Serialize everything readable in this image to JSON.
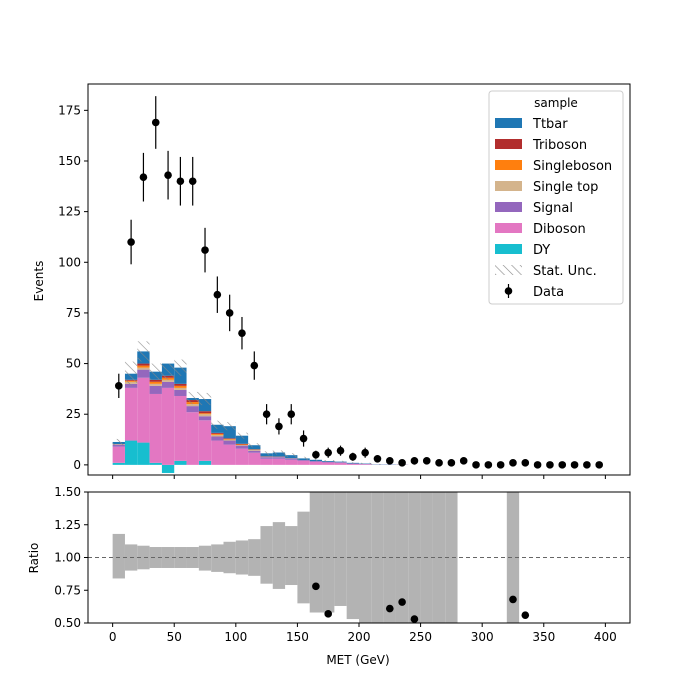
{
  "chart_data": {
    "type": "bar",
    "xlabel": "MET (GeV)",
    "bin_edges": [
      0,
      10,
      20,
      30,
      40,
      50,
      60,
      70,
      80,
      90,
      100,
      110,
      120,
      130,
      140,
      150,
      160,
      170,
      180,
      190,
      200,
      210,
      220,
      230,
      240,
      250,
      260,
      270,
      280,
      290,
      300,
      310,
      320,
      330,
      340,
      350,
      360,
      370,
      380,
      390,
      400
    ],
    "x_ticks": [
      "0",
      "50",
      "100",
      "150",
      "200",
      "250",
      "300",
      "350",
      "400"
    ],
    "top_panel": {
      "ylabel": "Events",
      "ylim": [
        -5,
        188
      ],
      "y_ticks": [
        "0",
        "25",
        "50",
        "75",
        "100",
        "125",
        "150",
        "175"
      ],
      "legend_title": "sample",
      "legend_position": "top-right",
      "stack": [
        {
          "name": "DY",
          "color": "#17becf",
          "values": [
            1,
            12,
            11,
            1,
            -4,
            2,
            0,
            2,
            0,
            0,
            0,
            0,
            0,
            0,
            0,
            0,
            0,
            0,
            0,
            0,
            0,
            0,
            0,
            0,
            0,
            0,
            0,
            0,
            0,
            0,
            0,
            0,
            0,
            0,
            0,
            0,
            0,
            0,
            0,
            0
          ]
        },
        {
          "name": "Diboson",
          "color": "#e377c2",
          "values": [
            8,
            26,
            32,
            34,
            38,
            32,
            26,
            20,
            12,
            10,
            8,
            6,
            3,
            3,
            2.5,
            2,
            1.5,
            1.2,
            1,
            0.5,
            0.3,
            0,
            0,
            0,
            0,
            0,
            0,
            0,
            0,
            0,
            0,
            0,
            0,
            0,
            0,
            0,
            0,
            0,
            0,
            0
          ]
        },
        {
          "name": "Signal",
          "color": "#9467bd",
          "values": [
            1,
            2,
            4,
            4,
            3,
            3,
            3,
            2,
            2,
            2,
            1.5,
            1,
            0.8,
            0.8,
            0.6,
            0.4,
            0.4,
            0.3,
            0.3,
            0.2,
            0.2,
            0.1,
            0.1,
            0.1,
            0,
            0,
            0,
            0,
            0,
            0,
            0,
            0,
            0,
            0,
            0,
            0,
            0,
            0,
            0,
            0
          ]
        },
        {
          "name": "Single top",
          "color": "#d4b48c",
          "values": [
            0.3,
            1,
            1,
            1,
            1,
            1,
            1,
            1,
            0.8,
            0.5,
            0.3,
            0.3,
            0.2,
            0.2,
            0.1,
            0,
            0,
            0,
            0,
            0,
            0,
            0,
            0,
            0,
            0,
            0,
            0,
            0,
            0,
            0,
            0,
            0,
            0,
            0,
            0,
            0,
            0,
            0,
            0,
            0
          ]
        },
        {
          "name": "Singleboson",
          "color": "#ff7f0e",
          "values": [
            0,
            0.5,
            1,
            1,
            1,
            1,
            1,
            0.5,
            0.5,
            0.3,
            0.3,
            0.2,
            0,
            0,
            0,
            0,
            0,
            0,
            0,
            0,
            0,
            0,
            0,
            0,
            0,
            0,
            0,
            0,
            0,
            0,
            0,
            0,
            0,
            0,
            0,
            0,
            0,
            0,
            0,
            0
          ]
        },
        {
          "name": "Triboson",
          "color": "#b22e2e",
          "values": [
            0,
            0.5,
            1,
            1,
            1,
            1,
            1,
            1,
            0.5,
            0.3,
            0.3,
            0.2,
            0.2,
            0.1,
            0.1,
            0,
            0,
            0,
            0,
            0,
            0,
            0,
            0,
            0,
            0,
            0,
            0,
            0,
            0,
            0,
            0,
            0,
            0,
            0,
            0,
            0,
            0,
            0,
            0,
            0
          ]
        },
        {
          "name": "Ttbar",
          "color": "#1f77b4",
          "values": [
            1,
            3,
            6,
            4,
            6,
            8,
            1,
            6,
            4,
            6,
            4,
            2,
            1.5,
            2,
            1.5,
            0.8,
            0.6,
            0.4,
            0.3,
            0.3,
            0.2,
            0.1,
            0.1,
            0,
            0,
            0,
            0,
            0,
            0,
            0,
            0,
            0,
            0,
            0,
            0,
            0,
            0,
            0,
            0,
            0
          ]
        }
      ],
      "stat_unc": [
        1.5,
        6,
        5,
        4,
        4,
        4,
        3,
        3,
        2,
        2,
        1.5,
        1,
        1,
        1,
        1,
        0.8,
        0.6,
        0.5,
        0.4,
        0.3,
        0.3,
        0.2,
        0.2,
        0.1,
        0.1,
        0,
        0,
        0,
        0,
        0,
        0,
        0,
        0,
        0,
        0,
        0,
        0,
        0,
        0,
        0
      ],
      "stat_unc_label": "Stat. Unc.",
      "data": {
        "name": "Data",
        "x": [
          5,
          15,
          25,
          35,
          45,
          55,
          65,
          75,
          85,
          95,
          105,
          115,
          125,
          135,
          145,
          155,
          165,
          175,
          185,
          195,
          205,
          215,
          225,
          235,
          245,
          255,
          265,
          275,
          285,
          295,
          305,
          315,
          325,
          335,
          345,
          355,
          365,
          375,
          385,
          395
        ],
        "y": [
          39,
          110,
          142,
          169,
          143,
          140,
          140,
          106,
          84,
          75,
          65,
          49,
          25,
          19,
          25,
          13,
          5,
          6,
          7,
          4,
          6,
          3,
          2,
          1,
          2,
          2,
          1,
          1,
          2,
          0,
          0,
          0,
          1,
          1,
          0,
          0,
          0,
          0,
          0,
          0
        ],
        "err": [
          6,
          11,
          12,
          13,
          12,
          12,
          12,
          11,
          9,
          9,
          8,
          7,
          5,
          4,
          5,
          4,
          2,
          2.5,
          2.5,
          2,
          2.5,
          1.7,
          1.4,
          1,
          1.4,
          1.4,
          1,
          1,
          1.4,
          0,
          0,
          0,
          1,
          1,
          0,
          0,
          0,
          0,
          0,
          0
        ]
      }
    },
    "bottom_panel": {
      "ylabel": "Ratio",
      "ylim": [
        0.5,
        1.5
      ],
      "y_ticks": [
        "0.50",
        "0.75",
        "1.00",
        "1.25",
        "1.50"
      ],
      "reference_line": 1.0,
      "unc_band": [
        [
          0.84,
          1.18
        ],
        [
          0.9,
          1.1
        ],
        [
          0.91,
          1.09
        ],
        [
          0.92,
          1.08
        ],
        [
          0.92,
          1.08
        ],
        [
          0.92,
          1.08
        ],
        [
          0.92,
          1.08
        ],
        [
          0.9,
          1.09
        ],
        [
          0.89,
          1.1
        ],
        [
          0.88,
          1.12
        ],
        [
          0.87,
          1.13
        ],
        [
          0.86,
          1.14
        ],
        [
          0.8,
          1.24
        ],
        [
          0.76,
          1.27
        ],
        [
          0.79,
          1.24
        ],
        [
          0.65,
          1.35
        ],
        [
          0.58,
          1.5
        ],
        [
          0.58,
          1.5
        ],
        [
          0.63,
          1.5
        ],
        [
          0.53,
          1.5
        ],
        [
          0.5,
          1.5
        ],
        [
          0.5,
          1.5
        ],
        [
          0.5,
          1.5
        ],
        [
          0.5,
          1.5
        ],
        [
          0.5,
          1.5
        ],
        [
          0.5,
          1.5
        ],
        [
          0.5,
          1.5
        ],
        [
          0.5,
          1.5
        ],
        null,
        null,
        null,
        null,
        [
          0.5,
          1.5
        ],
        null,
        null,
        null,
        null,
        null,
        null,
        null
      ],
      "points": {
        "x": [
          165,
          175,
          225,
          235,
          245,
          325,
          335
        ],
        "y": [
          0.78,
          0.57,
          0.61,
          0.66,
          0.53,
          0.68,
          0.56
        ]
      }
    }
  },
  "colors": {
    "unc_band": "#b3b3b3",
    "hatch": "#888888",
    "data_marker": "#000000",
    "reference_line": "#666666"
  }
}
